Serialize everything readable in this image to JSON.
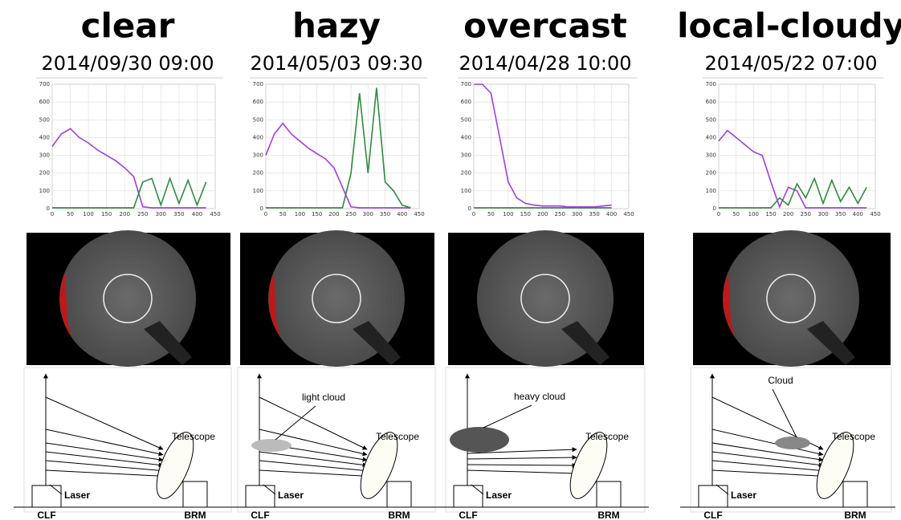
{
  "panels": [
    {
      "title": "clear",
      "date": "2014/09/30 09:00",
      "diagram": {
        "laser": "Laser",
        "site": "CLF",
        "station": "BRM",
        "telescope": "Telescope"
      }
    },
    {
      "title": "hazy",
      "date": "2014/05/03 09:30",
      "diagram": {
        "cloud": "light cloud",
        "laser": "Laser",
        "site": "CLF",
        "station": "BRM",
        "telescope": "Telescope"
      }
    },
    {
      "title": "overcast",
      "date": "2014/04/28 10:00",
      "diagram": {
        "cloud": "heavy cloud",
        "laser": "Laser",
        "site": "CLF",
        "station": "BRM",
        "telescope": "Telescope"
      }
    },
    {
      "title": "local-cloudy",
      "date": "2014/05/22 07:00",
      "diagram": {
        "cloud": "Cloud",
        "laser": "Laser",
        "site": "CLF",
        "station": "BRM",
        "telescope": "Telescope"
      }
    }
  ],
  "chart_data": [
    {
      "type": "line",
      "xlim": [
        0,
        450
      ],
      "ylim": [
        0,
        700
      ],
      "xticks": [
        0,
        50,
        100,
        150,
        200,
        250,
        300,
        350,
        400,
        450
      ],
      "yticks": [
        0,
        100,
        200,
        300,
        400,
        500,
        600,
        700
      ],
      "grid": true,
      "x": [
        0,
        25,
        50,
        75,
        100,
        125,
        150,
        175,
        200,
        225,
        250,
        275,
        300,
        325,
        350,
        375,
        400,
        425
      ],
      "series": [
        {
          "color": "#a23de0",
          "values": [
            350,
            420,
            450,
            400,
            370,
            330,
            300,
            270,
            230,
            180,
            10,
            5,
            5,
            5,
            5,
            5,
            5,
            5
          ]
        },
        {
          "color": "#2e8b3e",
          "values": [
            5,
            5,
            5,
            5,
            5,
            5,
            5,
            5,
            5,
            5,
            150,
            170,
            20,
            170,
            30,
            160,
            20,
            150
          ]
        }
      ]
    },
    {
      "type": "line",
      "xlim": [
        0,
        450
      ],
      "ylim": [
        0,
        700
      ],
      "xticks": [
        0,
        50,
        100,
        150,
        200,
        250,
        300,
        350,
        400,
        450
      ],
      "yticks": [
        0,
        100,
        200,
        300,
        400,
        500,
        600,
        700
      ],
      "grid": true,
      "x": [
        0,
        25,
        50,
        75,
        100,
        125,
        150,
        175,
        200,
        225,
        250,
        275,
        300,
        325,
        350,
        375,
        400,
        425
      ],
      "series": [
        {
          "color": "#a23de0",
          "values": [
            300,
            420,
            480,
            420,
            380,
            340,
            310,
            280,
            230,
            120,
            10,
            5,
            5,
            5,
            5,
            5,
            5,
            5
          ]
        },
        {
          "color": "#2e8b3e",
          "values": [
            5,
            5,
            5,
            5,
            5,
            5,
            5,
            5,
            5,
            5,
            200,
            650,
            200,
            680,
            150,
            100,
            20,
            5
          ]
        }
      ]
    },
    {
      "type": "line",
      "xlim": [
        0,
        450
      ],
      "ylim": [
        0,
        700
      ],
      "xticks": [
        0,
        50,
        100,
        150,
        200,
        250,
        300,
        350,
        400,
        450
      ],
      "yticks": [
        0,
        100,
        200,
        300,
        400,
        500,
        600,
        700
      ],
      "grid": true,
      "x": [
        0,
        25,
        50,
        75,
        100,
        125,
        150,
        175,
        200,
        225,
        250,
        275,
        300,
        325,
        350,
        375,
        400,
        425
      ],
      "series": [
        {
          "color": "#a23de0",
          "values": [
            700,
            700,
            650,
            400,
            150,
            60,
            30,
            20,
            15,
            15,
            15,
            10,
            10,
            10,
            10,
            15,
            20,
            null
          ]
        },
        {
          "color": "#2e8b3e",
          "values": [
            5,
            5,
            5,
            5,
            5,
            5,
            5,
            5,
            5,
            5,
            5,
            5,
            5,
            5,
            5,
            5,
            5,
            null
          ]
        }
      ]
    },
    {
      "type": "line",
      "xlim": [
        0,
        450
      ],
      "ylim": [
        0,
        700
      ],
      "xticks": [
        0,
        50,
        100,
        150,
        200,
        250,
        300,
        350,
        400,
        450
      ],
      "yticks": [
        0,
        100,
        200,
        300,
        400,
        500,
        600,
        700
      ],
      "grid": true,
      "x": [
        0,
        25,
        50,
        75,
        100,
        125,
        150,
        175,
        200,
        225,
        250,
        275,
        300,
        325,
        350,
        375,
        400,
        425
      ],
      "series": [
        {
          "color": "#a23de0",
          "values": [
            380,
            440,
            400,
            360,
            320,
            300,
            150,
            10,
            120,
            100,
            5,
            5,
            5,
            5,
            5,
            5,
            5,
            5
          ]
        },
        {
          "color": "#2e8b3e",
          "values": [
            5,
            5,
            5,
            5,
            5,
            5,
            5,
            60,
            20,
            140,
            60,
            170,
            30,
            160,
            40,
            120,
            30,
            120
          ]
        }
      ]
    }
  ]
}
